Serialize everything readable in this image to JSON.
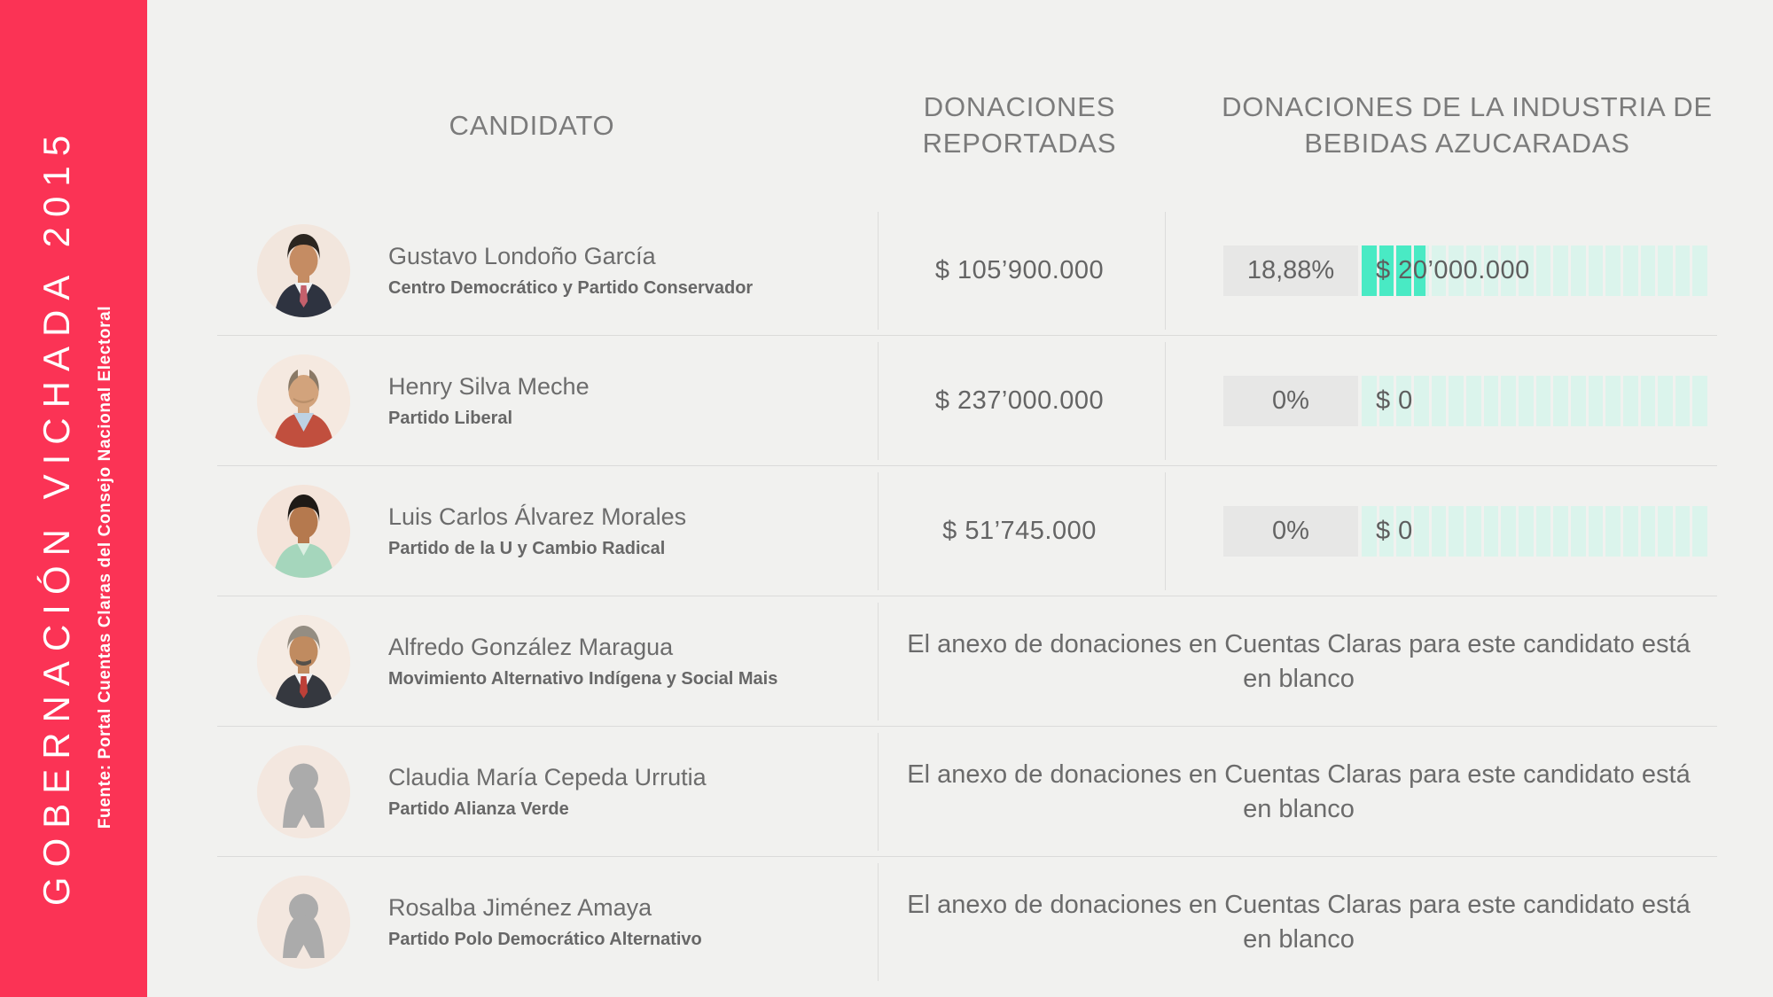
{
  "sidebar": {
    "title": "GOBERNACIÓN VICHADA 2015",
    "source": "Fuente: Portal Cuentas Claras del Consejo Nacional Electoral"
  },
  "headers": {
    "candidate": "CANDIDATO",
    "reported": "DONACIONES REPORTADAS",
    "industry": "DONACIONES DE LA INDUSTRIA DE BEBIDAS AZUCARADAS"
  },
  "bar": {
    "segments": 20
  },
  "colors": {
    "sidebar_red": "#FB3355",
    "background": "#F1F1EF",
    "bar_fill": "#49EAC4",
    "bar_empty": "#DBF4EC",
    "percent_box": "#E7E7E6",
    "separator": "#DBDBDA",
    "text_gray": "#6C6C6C"
  },
  "rows": [
    {
      "name": "Gustavo Londoño García",
      "party": "Centro Democrático y Partido Conservador",
      "avatar": "photo-man-dark-suit-red-tie",
      "reported": "$ 105’900.000",
      "percent_label": "18,88%",
      "industry_percent": 18.88,
      "amount_label": "$ 20’000.000"
    },
    {
      "name": "Henry Silva Meche",
      "party": "Partido Liberal",
      "avatar": "photo-man-red-jacket",
      "reported": "$ 237’000.000",
      "percent_label": "0%",
      "industry_percent": 0,
      "amount_label": "$ 0"
    },
    {
      "name": "Luis Carlos Álvarez Morales",
      "party": "Partido de la U y Cambio Radical",
      "avatar": "photo-man-mint-shirt",
      "reported": "$ 51’745.000",
      "percent_label": "0%",
      "industry_percent": 0,
      "amount_label": "$ 0"
    },
    {
      "name": "Alfredo González Maragua",
      "party": "Movimiento Alternativo Indígena y Social Mais",
      "avatar": "photo-man-gray-hair-mustache",
      "blank_message": "El anexo de donaciones en Cuentas Claras para este candidato está en blanco"
    },
    {
      "name": "Claudia María Cepeda Urrutia",
      "party": "Partido Alianza Verde",
      "avatar": "silhouette-woman",
      "blank_message": "El anexo de donaciones en Cuentas Claras para este candidato está en blanco"
    },
    {
      "name": "Rosalba Jiménez Amaya",
      "party": "Partido Polo Democrático Alternativo",
      "avatar": "silhouette-woman",
      "blank_message": "El anexo de donaciones en Cuentas Claras para este candidato está en blanco"
    }
  ],
  "chart_data": {
    "type": "table",
    "title": "GOBERNACIÓN VICHADA 2015",
    "source": "Fuente: Portal Cuentas Claras del Consejo Nacional Electoral",
    "columns": [
      "CANDIDATO",
      "DONACIONES REPORTADAS",
      "DONACIONES DE LA INDUSTRIA DE BEBIDAS AZUCARADAS"
    ],
    "bar_scale": {
      "segments": 20,
      "full_bar_pct": 100
    },
    "rows": [
      {
        "candidate": "Gustavo Londoño García",
        "party": "Centro Democrático y Partido Conservador",
        "reported_donations": 105900000,
        "industry_donations": 20000000,
        "industry_share_pct": 18.88
      },
      {
        "candidate": "Henry Silva Meche",
        "party": "Partido Liberal",
        "reported_donations": 237000000,
        "industry_donations": 0,
        "industry_share_pct": 0
      },
      {
        "candidate": "Luis Carlos Álvarez Morales",
        "party": "Partido de la U y Cambio Radical",
        "reported_donations": 51745000,
        "industry_donations": 0,
        "industry_share_pct": 0
      },
      {
        "candidate": "Alfredo González Maragua",
        "party": "Movimiento Alternativo Indígena y Social Mais",
        "note": "El anexo de donaciones en Cuentas Claras para este candidato está en blanco"
      },
      {
        "candidate": "Claudia María Cepeda Urrutia",
        "party": "Partido Alianza Verde",
        "note": "El anexo de donaciones en Cuentas Claras para este candidato está en blanco"
      },
      {
        "candidate": "Rosalba Jiménez Amaya",
        "party": "Partido Polo Democrático Alternativo",
        "note": "El anexo de donaciones en Cuentas Claras para este candidato está en blanco"
      }
    ]
  }
}
